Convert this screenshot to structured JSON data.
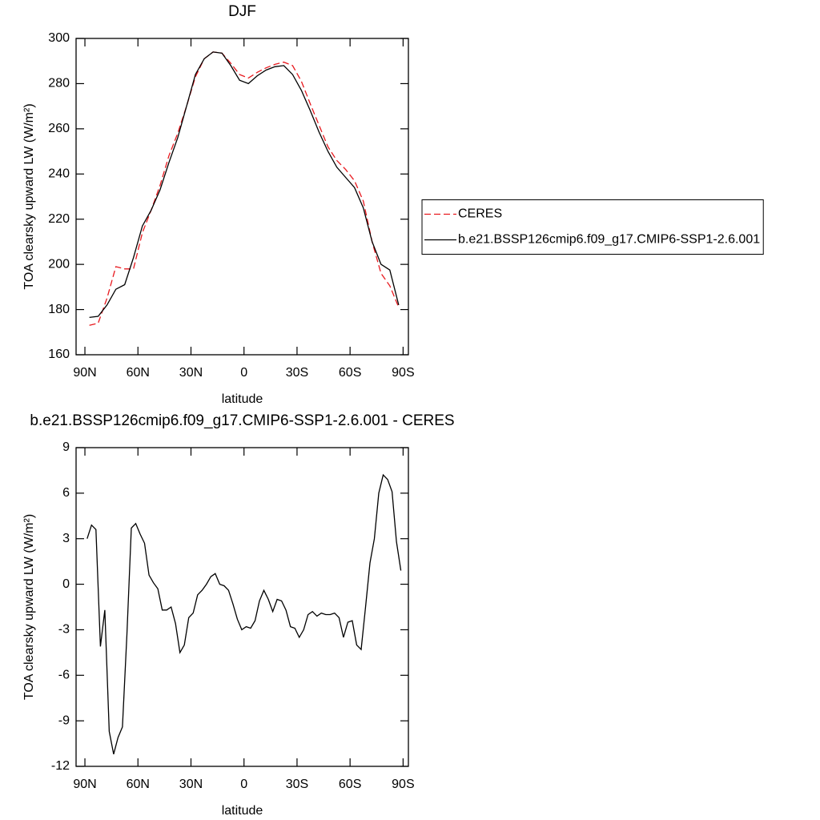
{
  "chart_data": [
    {
      "type": "line",
      "title": "DJF",
      "xlabel": "latitude",
      "ylabel": "TOA clearsky upward LW (W/m²)",
      "x": [
        87.5,
        82.5,
        77.5,
        72.5,
        67.5,
        62.5,
        57.5,
        52.5,
        47.5,
        42.5,
        37.5,
        32.5,
        27.5,
        22.5,
        17.5,
        12.5,
        7.5,
        2.5,
        -2.5,
        -7.5,
        -12.5,
        -17.5,
        -22.5,
        -27.5,
        -32.5,
        -37.5,
        -42.5,
        -47.5,
        -52.5,
        -57.5,
        -62.5,
        -67.5,
        -72.5,
        -77.5,
        -82.5,
        -87.5
      ],
      "series": [
        {
          "name": "CERES",
          "color": "#e8191e",
          "dash": "dashed",
          "values": [
            173,
            174,
            185,
            199,
            198,
            198,
            214,
            224,
            235,
            248,
            258,
            270,
            283,
            291,
            294,
            293.5,
            289,
            284,
            282.5,
            285,
            287,
            288.5,
            289.5,
            288,
            281,
            271,
            261.5,
            252,
            246,
            242,
            237,
            228,
            210,
            196,
            190.5,
            181
          ]
        },
        {
          "name": "b.e21.BSSP126cmip6.f09_g17.CMIP6-SSP1-2.6.001",
          "color": "#000000",
          "dash": "solid",
          "values": [
            176.5,
            177,
            182,
            189,
            191,
            203,
            217,
            224,
            233,
            245,
            256,
            270,
            284,
            291,
            294,
            293.5,
            288,
            281.5,
            280,
            283.5,
            286,
            287.5,
            288,
            284,
            277,
            268,
            258.5,
            250,
            243,
            238.5,
            234,
            225,
            210,
            200,
            197.5,
            182
          ]
        }
      ],
      "xlim": [
        95,
        -93
      ],
      "ylim": [
        160,
        300
      ],
      "xticks": [
        {
          "value": 90,
          "label": "90N"
        },
        {
          "value": 60,
          "label": "60N"
        },
        {
          "value": 30,
          "label": "30N"
        },
        0,
        {
          "value": -30,
          "label": "30S"
        },
        {
          "value": -60,
          "label": "60S"
        },
        {
          "value": -90,
          "label": "90S"
        }
      ],
      "yticks": [
        160,
        180,
        200,
        220,
        240,
        260,
        280,
        300
      ],
      "legend": "right"
    },
    {
      "type": "line",
      "title": "b.e21.BSSP126cmip6.f09_g17.CMIP6-SSP1-2.6.001 - CERES",
      "xlabel": "latitude",
      "ylabel": "TOA clearsky upward LW (W/m²)",
      "x": [
        88.75,
        86.25,
        83.75,
        81.25,
        78.75,
        76.25,
        73.75,
        71.25,
        68.75,
        66.25,
        63.75,
        61.25,
        58.75,
        56.25,
        53.75,
        51.25,
        48.75,
        46.25,
        43.75,
        41.25,
        38.75,
        36.25,
        33.75,
        31.25,
        28.75,
        26.25,
        23.75,
        21.25,
        18.75,
        16.25,
        13.75,
        11.25,
        8.75,
        6.25,
        3.75,
        1.25,
        -1.25,
        -3.75,
        -6.25,
        -8.75,
        -11.25,
        -13.75,
        -16.25,
        -18.75,
        -21.25,
        -23.75,
        -26.25,
        -28.75,
        -31.25,
        -33.75,
        -36.25,
        -38.75,
        -41.25,
        -43.75,
        -46.25,
        -48.75,
        -51.25,
        -53.75,
        -56.25,
        -58.75,
        -61.25,
        -63.75,
        -66.25,
        -68.75,
        -71.25,
        -73.75,
        -76.25,
        -78.75,
        -81.25,
        -83.75,
        -86.25,
        -88.75
      ],
      "series": [
        {
          "color": "#000000",
          "dash": "solid",
          "values": [
            3.0,
            3.9,
            3.6,
            -4.1,
            -1.7,
            -9.7,
            -11.2,
            -10.1,
            -9.4,
            -3.3,
            3.7,
            4.0,
            3.3,
            2.7,
            0.6,
            0.1,
            -0.3,
            -1.7,
            -1.7,
            -1.5,
            -2.6,
            -4.5,
            -4.0,
            -2.2,
            -1.9,
            -0.7,
            -0.4,
            0.0,
            0.5,
            0.7,
            0.0,
            -0.1,
            -0.4,
            -1.3,
            -2.3,
            -3.0,
            -2.8,
            -2.9,
            -2.4,
            -1.1,
            -0.4,
            -1.0,
            -1.8,
            -1.0,
            -1.1,
            -1.7,
            -2.8,
            -2.9,
            -3.5,
            -3.0,
            -2.0,
            -1.8,
            -2.1,
            -1.9,
            -2.0,
            -2.0,
            -1.9,
            -2.2,
            -3.5,
            -2.5,
            -2.4,
            -4.0,
            -4.3,
            -1.5,
            1.4,
            3.0,
            6.0,
            7.2,
            6.9,
            6.1,
            2.8,
            0.9
          ]
        }
      ],
      "xlim": [
        95,
        -93
      ],
      "ylim": [
        -12,
        9
      ],
      "xticks": [
        {
          "value": 90,
          "label": "90N"
        },
        {
          "value": 60,
          "label": "60N"
        },
        {
          "value": 30,
          "label": "30N"
        },
        0,
        {
          "value": -30,
          "label": "30S"
        },
        {
          "value": -60,
          "label": "60S"
        },
        {
          "value": -90,
          "label": "90S"
        }
      ],
      "yticks": [
        -12,
        -9,
        -6,
        -3,
        0,
        3,
        6,
        9
      ]
    }
  ]
}
